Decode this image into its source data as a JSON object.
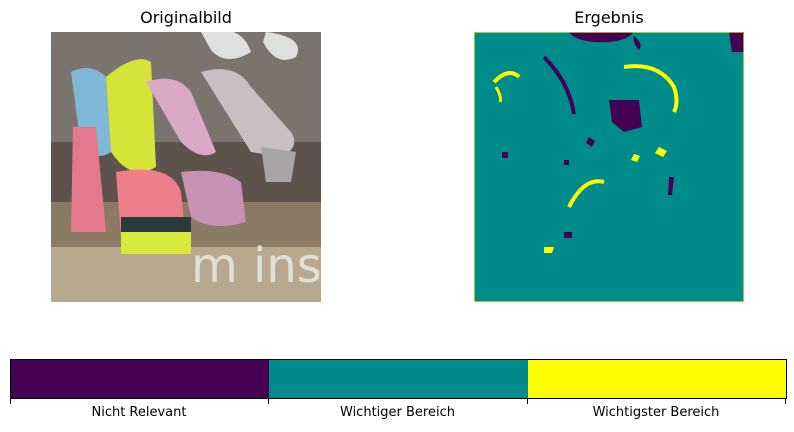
{
  "figure": {
    "left_title": "Originalbild",
    "right_title": "Ergebnis"
  },
  "colorbar": {
    "labels": [
      "Nicht Relevant",
      "Wichtiger Bereich",
      "Wichtigster Bereich"
    ],
    "colors": [
      "#440154",
      "#008b8b",
      "#ffff00"
    ]
  },
  "original_image": {
    "description_text_visible": "m insi",
    "colors": {
      "shoe_yellow": "#d8e83a",
      "shoe_pink": "#e8728a",
      "shoe_lilac": "#d9a9c6",
      "shoe_silver": "#c8c0c0",
      "background": "#6b5d55"
    }
  }
}
